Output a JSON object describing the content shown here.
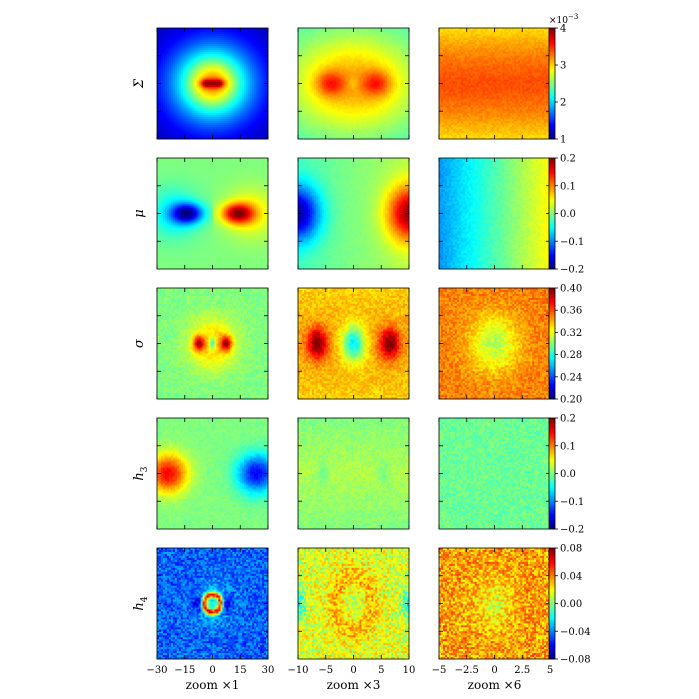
{
  "chart_data": {
    "type": "heatmap",
    "colormap": "jet",
    "rows": [
      {
        "label": "Σ",
        "sub": "",
        "colorbar": {
          "min": 1,
          "max": 4,
          "ticks": [
            "1",
            "2",
            "3",
            "4"
          ],
          "exponent_label": "×10",
          "exponent": "−3"
        }
      },
      {
        "label": "μ",
        "sub": "",
        "colorbar": {
          "min": -0.2,
          "max": 0.2,
          "ticks": [
            "−0.2",
            "−0.1",
            "0.0",
            "0.1",
            "0.2"
          ]
        }
      },
      {
        "label": "σ",
        "sub": "",
        "colorbar": {
          "min": 0.2,
          "max": 0.4,
          "ticks": [
            "0.20",
            "0.24",
            "0.28",
            "0.32",
            "0.36",
            "0.40"
          ]
        }
      },
      {
        "label": "h",
        "sub": "3",
        "colorbar": {
          "min": -0.2,
          "max": 0.2,
          "ticks": [
            "−0.2",
            "−0.1",
            "0.0",
            "0.1",
            "0.2"
          ]
        }
      },
      {
        "label": "h",
        "sub": "4",
        "colorbar": {
          "min": -0.08,
          "max": 0.08,
          "ticks": [
            "−0.08",
            "−0.04",
            "0.00",
            "0.04",
            "0.08"
          ]
        }
      }
    ],
    "columns": [
      {
        "xlabel": "zoom ×1",
        "xlim": [
          -30,
          30
        ],
        "xticks": [
          -30,
          -15,
          0,
          15,
          30
        ],
        "xtick_labels": [
          "−30",
          "−15",
          "0",
          "15",
          "30"
        ]
      },
      {
        "xlabel": "zoom ×3",
        "xlim": [
          -10,
          10
        ],
        "xticks": [
          -10,
          -5,
          0,
          5,
          10
        ],
        "xtick_labels": [
          "−10",
          "−5",
          "0",
          "5",
          "10"
        ]
      },
      {
        "xlabel": "zoom ×6",
        "xlim": [
          -5,
          5
        ],
        "xticks": [
          -5,
          -2.5,
          0,
          2.5,
          5
        ],
        "xtick_labels": [
          "−5",
          "−2.5",
          "0",
          "2.5",
          "5"
        ]
      }
    ]
  }
}
